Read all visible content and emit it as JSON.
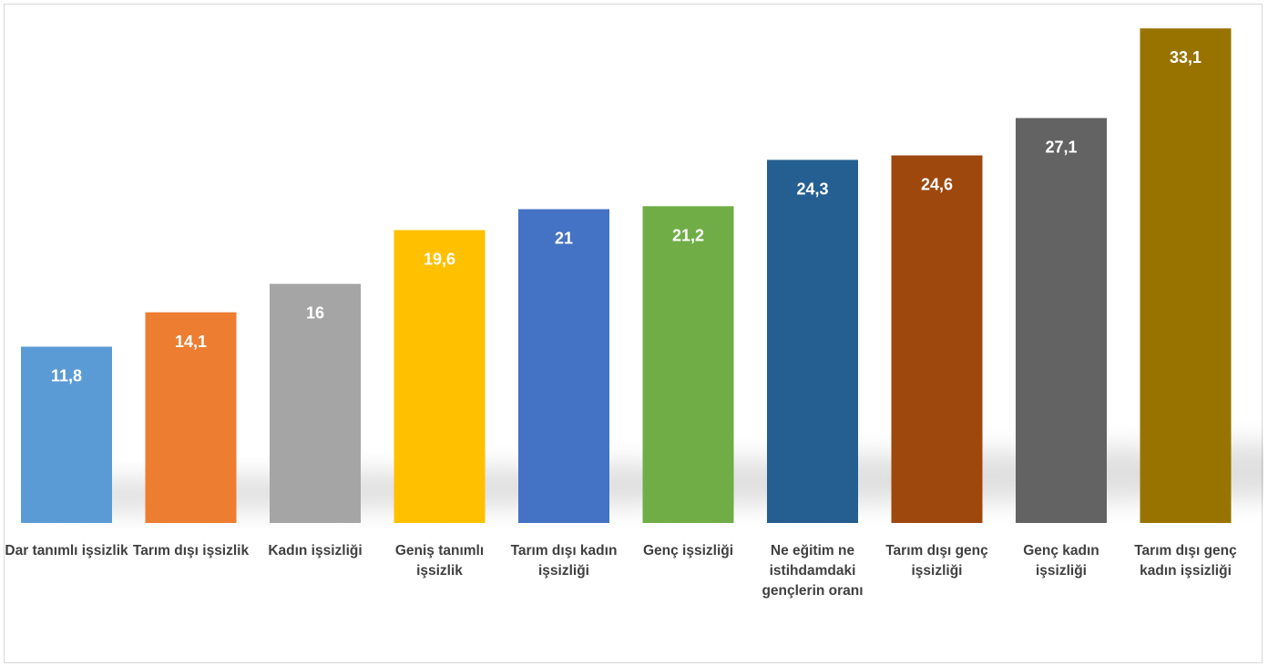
{
  "chart_data": {
    "type": "bar",
    "title": "",
    "xlabel": "",
    "ylabel": "",
    "ylim": [
      0,
      35
    ],
    "grid": false,
    "legend": "none",
    "categories": [
      "Dar tanımlı işsizlik",
      "Tarım dışı işsizlik",
      "Kadın işsizliği",
      "Geniş tanımlı işsizlik",
      "Tarım dışı kadın işsizliği",
      "Genç işsizliği",
      "Ne eğitim ne istihdamdaki gençlerin oranı",
      "Tarım dışı genç işsizliği",
      "Genç kadın işsizliği",
      "Tarım dışı genç kadın işsizliği"
    ],
    "values": [
      11.8,
      14.1,
      16,
      19.6,
      21,
      21.2,
      24.3,
      24.6,
      27.1,
      33.1
    ],
    "value_labels": [
      "11,8",
      "14,1",
      "16",
      "19,6",
      "21",
      "21,2",
      "24,3",
      "24,6",
      "27,1",
      "33,1"
    ],
    "colors": [
      "#5b9bd5",
      "#ed7d31",
      "#a5a5a5",
      "#ffc000",
      "#4472c4",
      "#70ad47",
      "#255e91",
      "#9e480e",
      "#636363",
      "#997300"
    ]
  }
}
